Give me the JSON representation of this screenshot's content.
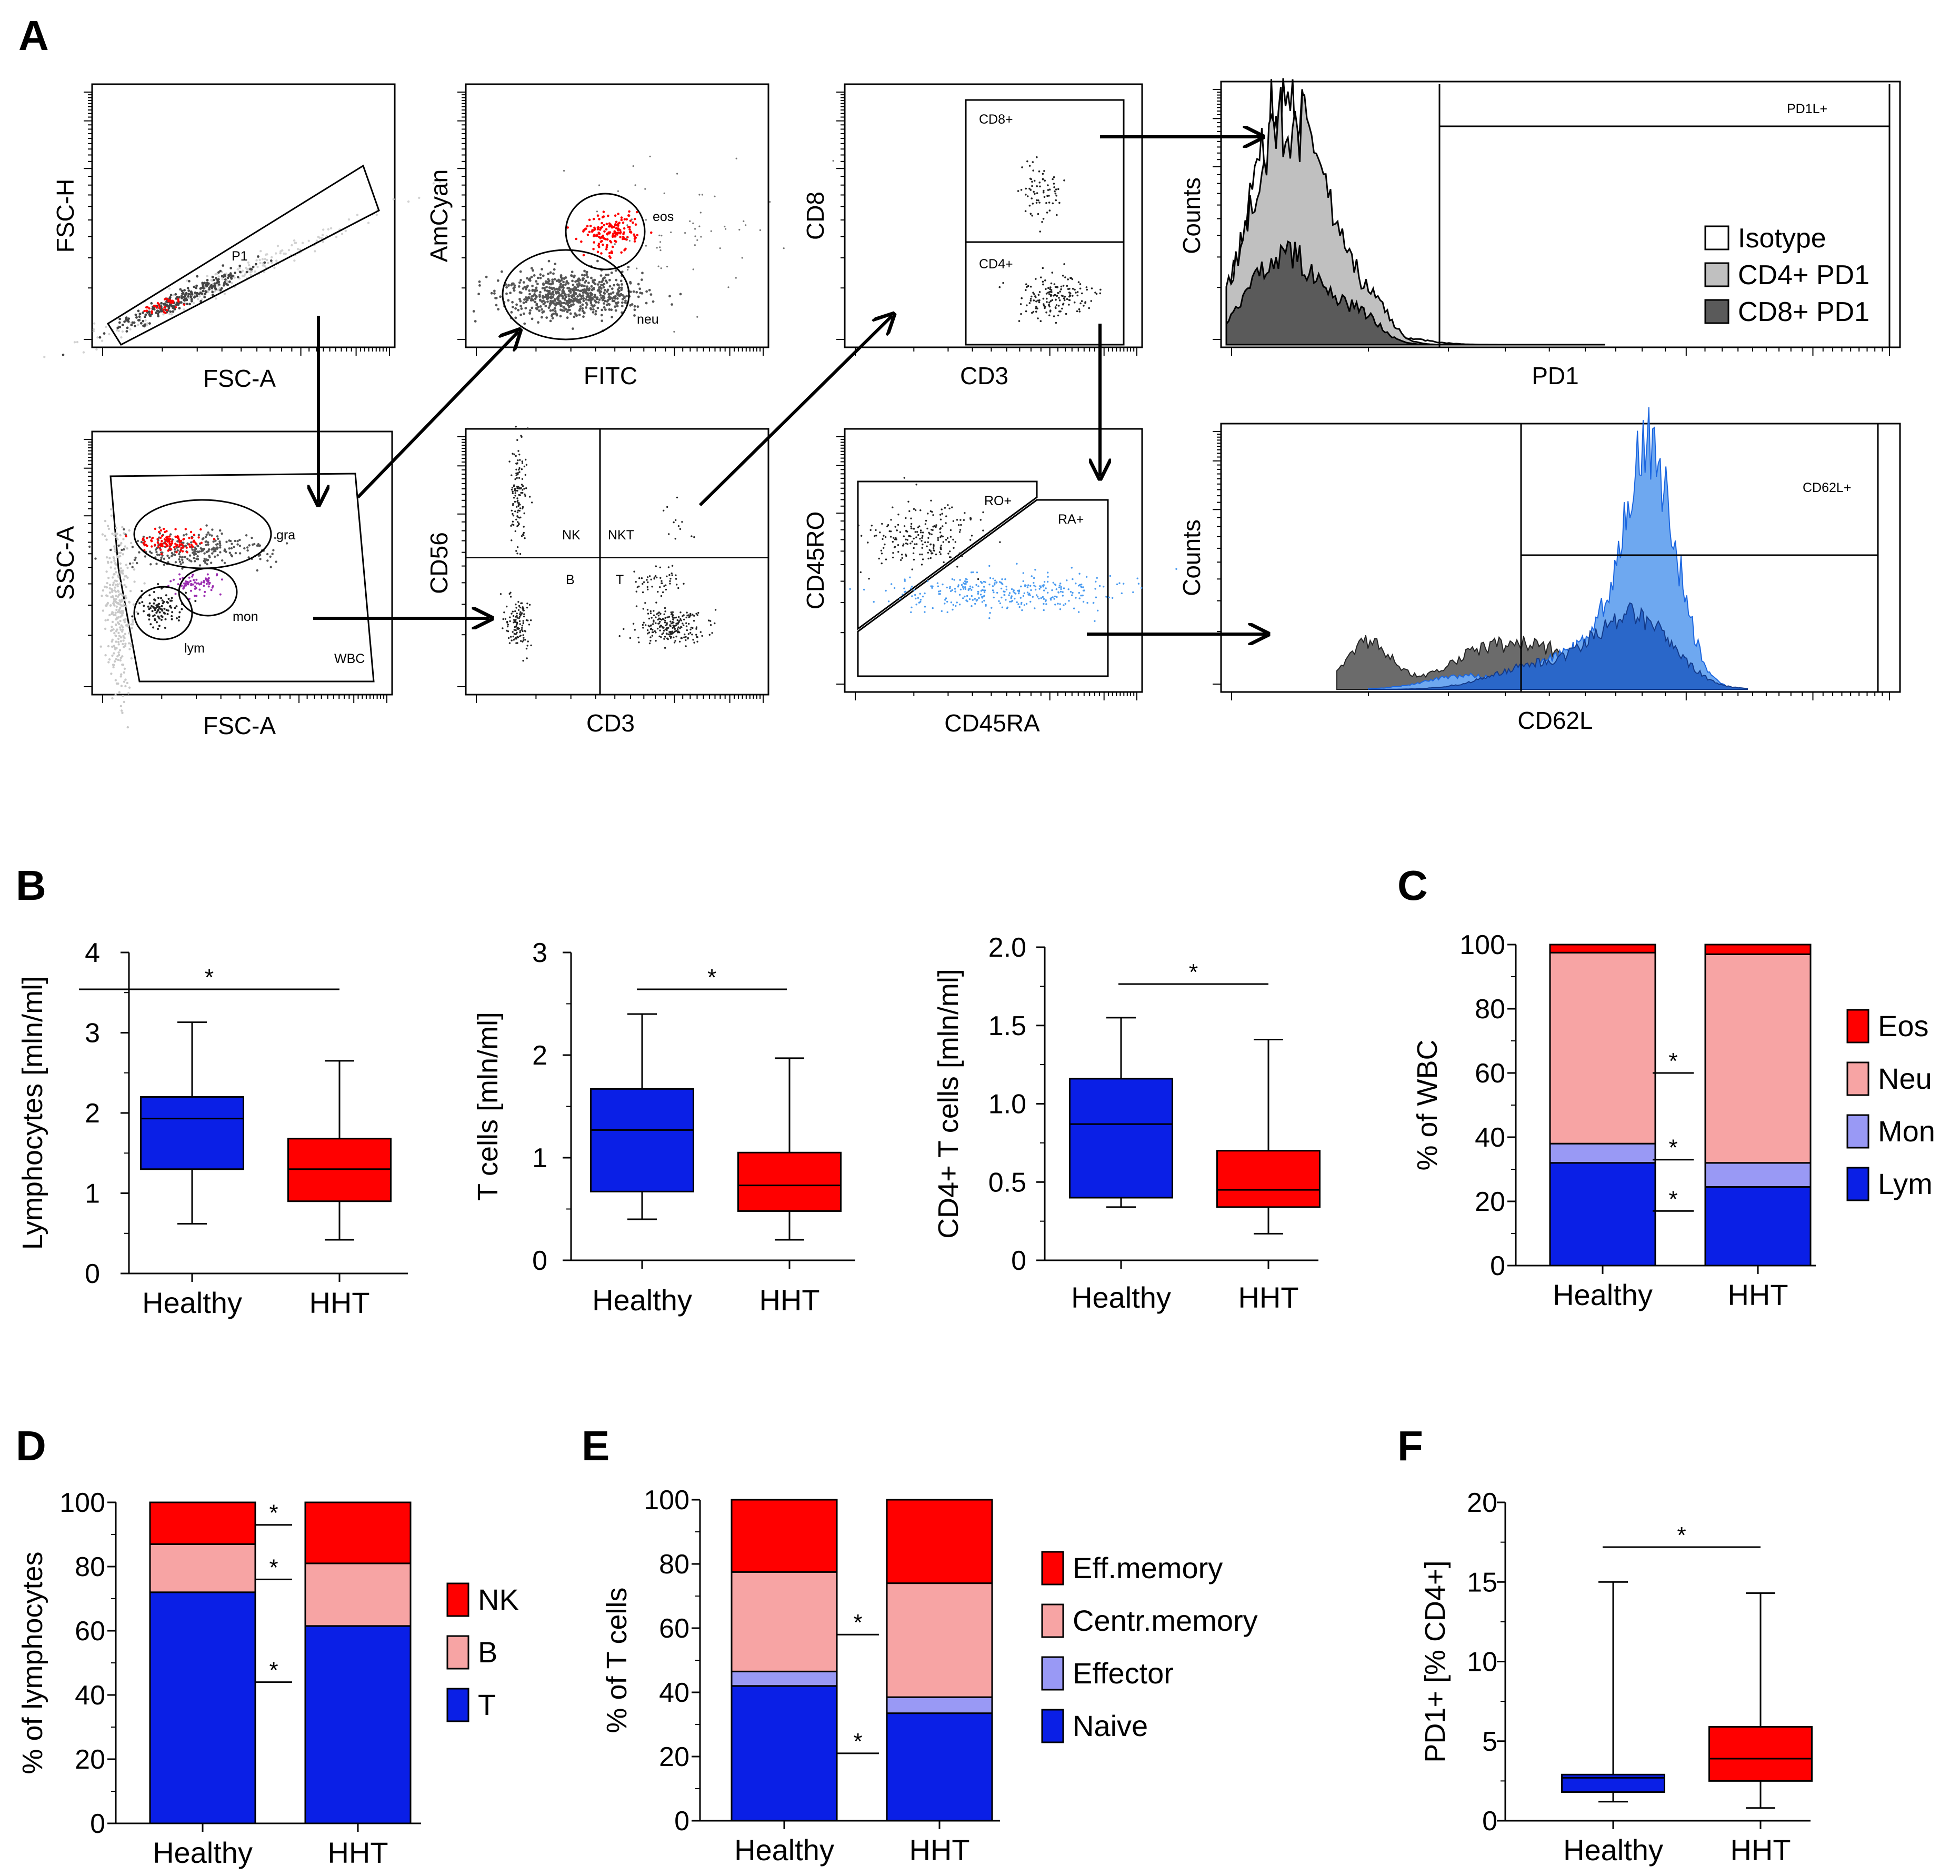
{
  "panel_letters": [
    "A",
    "B",
    "C",
    "D",
    "E",
    "F"
  ],
  "colors": {
    "blue": "#0a1fe6",
    "red": "#ff0000",
    "pink": "#f7a4a4",
    "lavender": "#9999f5",
    "light_gray": "#c0c0c0",
    "dark_gray": "#5a5a5a",
    "light_blue": "#6ea8f0",
    "mid_blue": "#2a67c9"
  },
  "panel_a": {
    "plots": [
      {
        "xlabel": "FSC-A",
        "ylabel": "FSC-H",
        "gates": [
          "P1"
        ]
      },
      {
        "xlabel": "FITC",
        "ylabel": "AmCyan",
        "gates": [
          "eos",
          "neu"
        ]
      },
      {
        "xlabel": "CD3",
        "ylabel": "CD8",
        "gates": [
          "CD8+",
          "CD4+"
        ]
      },
      {
        "xlabel": "FSC-A",
        "ylabel": "SSC-A",
        "gates": [
          "gra",
          "mon",
          "lym",
          "WBC"
        ]
      },
      {
        "xlabel": "CD3",
        "ylabel": "CD56",
        "gates": [
          "NK",
          "NKT",
          "B",
          "T"
        ]
      },
      {
        "xlabel": "CD45RA",
        "ylabel": "CD45RO",
        "gates": [
          "RO+",
          "RA+"
        ]
      }
    ],
    "histograms": [
      {
        "xlabel": "PD1",
        "ylabel": "Counts",
        "gate": "PD1L+",
        "legend": [
          "Isotype",
          "CD4+ PD1",
          "CD8+ PD1"
        ]
      },
      {
        "xlabel": "CD62L",
        "ylabel": "Counts",
        "gate": "CD62L+"
      }
    ]
  },
  "significance_mark": "*",
  "chart_data": [
    {
      "panel": "B",
      "type": "box",
      "ylabel": "Lymphocytes [mln/ml]",
      "ylim": [
        0,
        4
      ],
      "yticks": [
        "0",
        "1",
        "2",
        "3",
        "4"
      ],
      "categories": [
        "Healthy",
        "HHT"
      ],
      "series": [
        {
          "name": "Healthy",
          "min": 0.62,
          "q1": 1.3,
          "median": 1.93,
          "q3": 2.2,
          "max": 3.13
        },
        {
          "name": "HHT",
          "min": 0.42,
          "q1": 0.9,
          "median": 1.3,
          "q3": 1.68,
          "max": 2.65
        }
      ],
      "significance": "*"
    },
    {
      "panel": "B",
      "type": "box",
      "ylabel": "T cells [mln/ml]",
      "ylim": [
        0,
        3
      ],
      "yticks": [
        "0",
        "1",
        "2",
        "3"
      ],
      "categories": [
        "Healthy",
        "HHT"
      ],
      "series": [
        {
          "name": "Healthy",
          "min": 0.4,
          "q1": 0.67,
          "median": 1.27,
          "q3": 1.67,
          "max": 2.4
        },
        {
          "name": "HHT",
          "min": 0.2,
          "q1": 0.48,
          "median": 0.73,
          "q3": 1.05,
          "max": 1.97
        }
      ],
      "significance": "*"
    },
    {
      "panel": "B",
      "type": "box",
      "ylabel": "CD4+ T cells [mln/ml]",
      "ylim": [
        0,
        2
      ],
      "yticks": [
        "0",
        "0.5",
        "1.0",
        "1.5",
        "2.0"
      ],
      "categories": [
        "Healthy",
        "HHT"
      ],
      "series": [
        {
          "name": "Healthy",
          "min": 0.34,
          "q1": 0.4,
          "median": 0.87,
          "q3": 1.16,
          "max": 1.55
        },
        {
          "name": "HHT",
          "min": 0.17,
          "q1": 0.34,
          "median": 0.45,
          "q3": 0.7,
          "max": 1.41
        }
      ],
      "significance": "*"
    },
    {
      "panel": "C",
      "type": "stacked_bar",
      "ylabel": "% of WBC",
      "ylim": [
        0,
        100
      ],
      "yticks": [
        "0",
        "20",
        "40",
        "60",
        "80",
        "100"
      ],
      "categories": [
        "Healthy",
        "HHT"
      ],
      "series": [
        {
          "name": "Lym",
          "values": [
            32,
            24.5
          ]
        },
        {
          "name": "Mon",
          "values": [
            6,
            7.5
          ]
        },
        {
          "name": "Neu",
          "values": [
            59.5,
            65
          ]
        },
        {
          "name": "Eos",
          "values": [
            2.5,
            3
          ]
        }
      ],
      "legend": [
        "Eos",
        "Neu",
        "Mon",
        "Lym"
      ],
      "significance_y": [
        17,
        33,
        60
      ]
    },
    {
      "panel": "D",
      "type": "stacked_bar",
      "ylabel": "% of lymphocytes",
      "ylim": [
        0,
        100
      ],
      "yticks": [
        "0",
        "20",
        "40",
        "60",
        "80",
        "100"
      ],
      "categories": [
        "Healthy",
        "HHT"
      ],
      "series": [
        {
          "name": "T",
          "values": [
            72,
            61.5
          ]
        },
        {
          "name": "B",
          "values": [
            15,
            19.5
          ]
        },
        {
          "name": "NK",
          "values": [
            13,
            19
          ]
        }
      ],
      "legend": [
        "NK",
        "B",
        "T"
      ],
      "significance_y": [
        44,
        76,
        93
      ]
    },
    {
      "panel": "E",
      "type": "stacked_bar",
      "ylabel": "% of T cells",
      "ylim": [
        0,
        100
      ],
      "yticks": [
        "0",
        "20",
        "40",
        "60",
        "80",
        "100"
      ],
      "categories": [
        "Healthy",
        "HHT"
      ],
      "series": [
        {
          "name": "Naive",
          "values": [
            42,
            33.5
          ]
        },
        {
          "name": "Effector",
          "values": [
            4.5,
            5
          ]
        },
        {
          "name": "Centr.memory",
          "values": [
            31,
            35.5
          ]
        },
        {
          "name": "Eff.memory",
          "values": [
            22.5,
            26
          ]
        }
      ],
      "legend": [
        "Eff.memory",
        "Centr.memory",
        "Effector",
        "Naive"
      ],
      "significance_y": [
        21,
        58
      ]
    },
    {
      "panel": "F",
      "type": "box",
      "ylabel": "PD1+ [% CD4+]",
      "ylim": [
        0,
        20
      ],
      "yticks": [
        "0",
        "5",
        "10",
        "15",
        "20"
      ],
      "categories": [
        "Healthy",
        "HHT"
      ],
      "series": [
        {
          "name": "Healthy",
          "min": 1.2,
          "q1": 1.8,
          "median": 2.7,
          "q3": 2.9,
          "max": 15
        },
        {
          "name": "HHT",
          "min": 0.8,
          "q1": 2.5,
          "median": 3.9,
          "q3": 5.9,
          "max": 14.3
        }
      ],
      "significance": "*"
    }
  ]
}
